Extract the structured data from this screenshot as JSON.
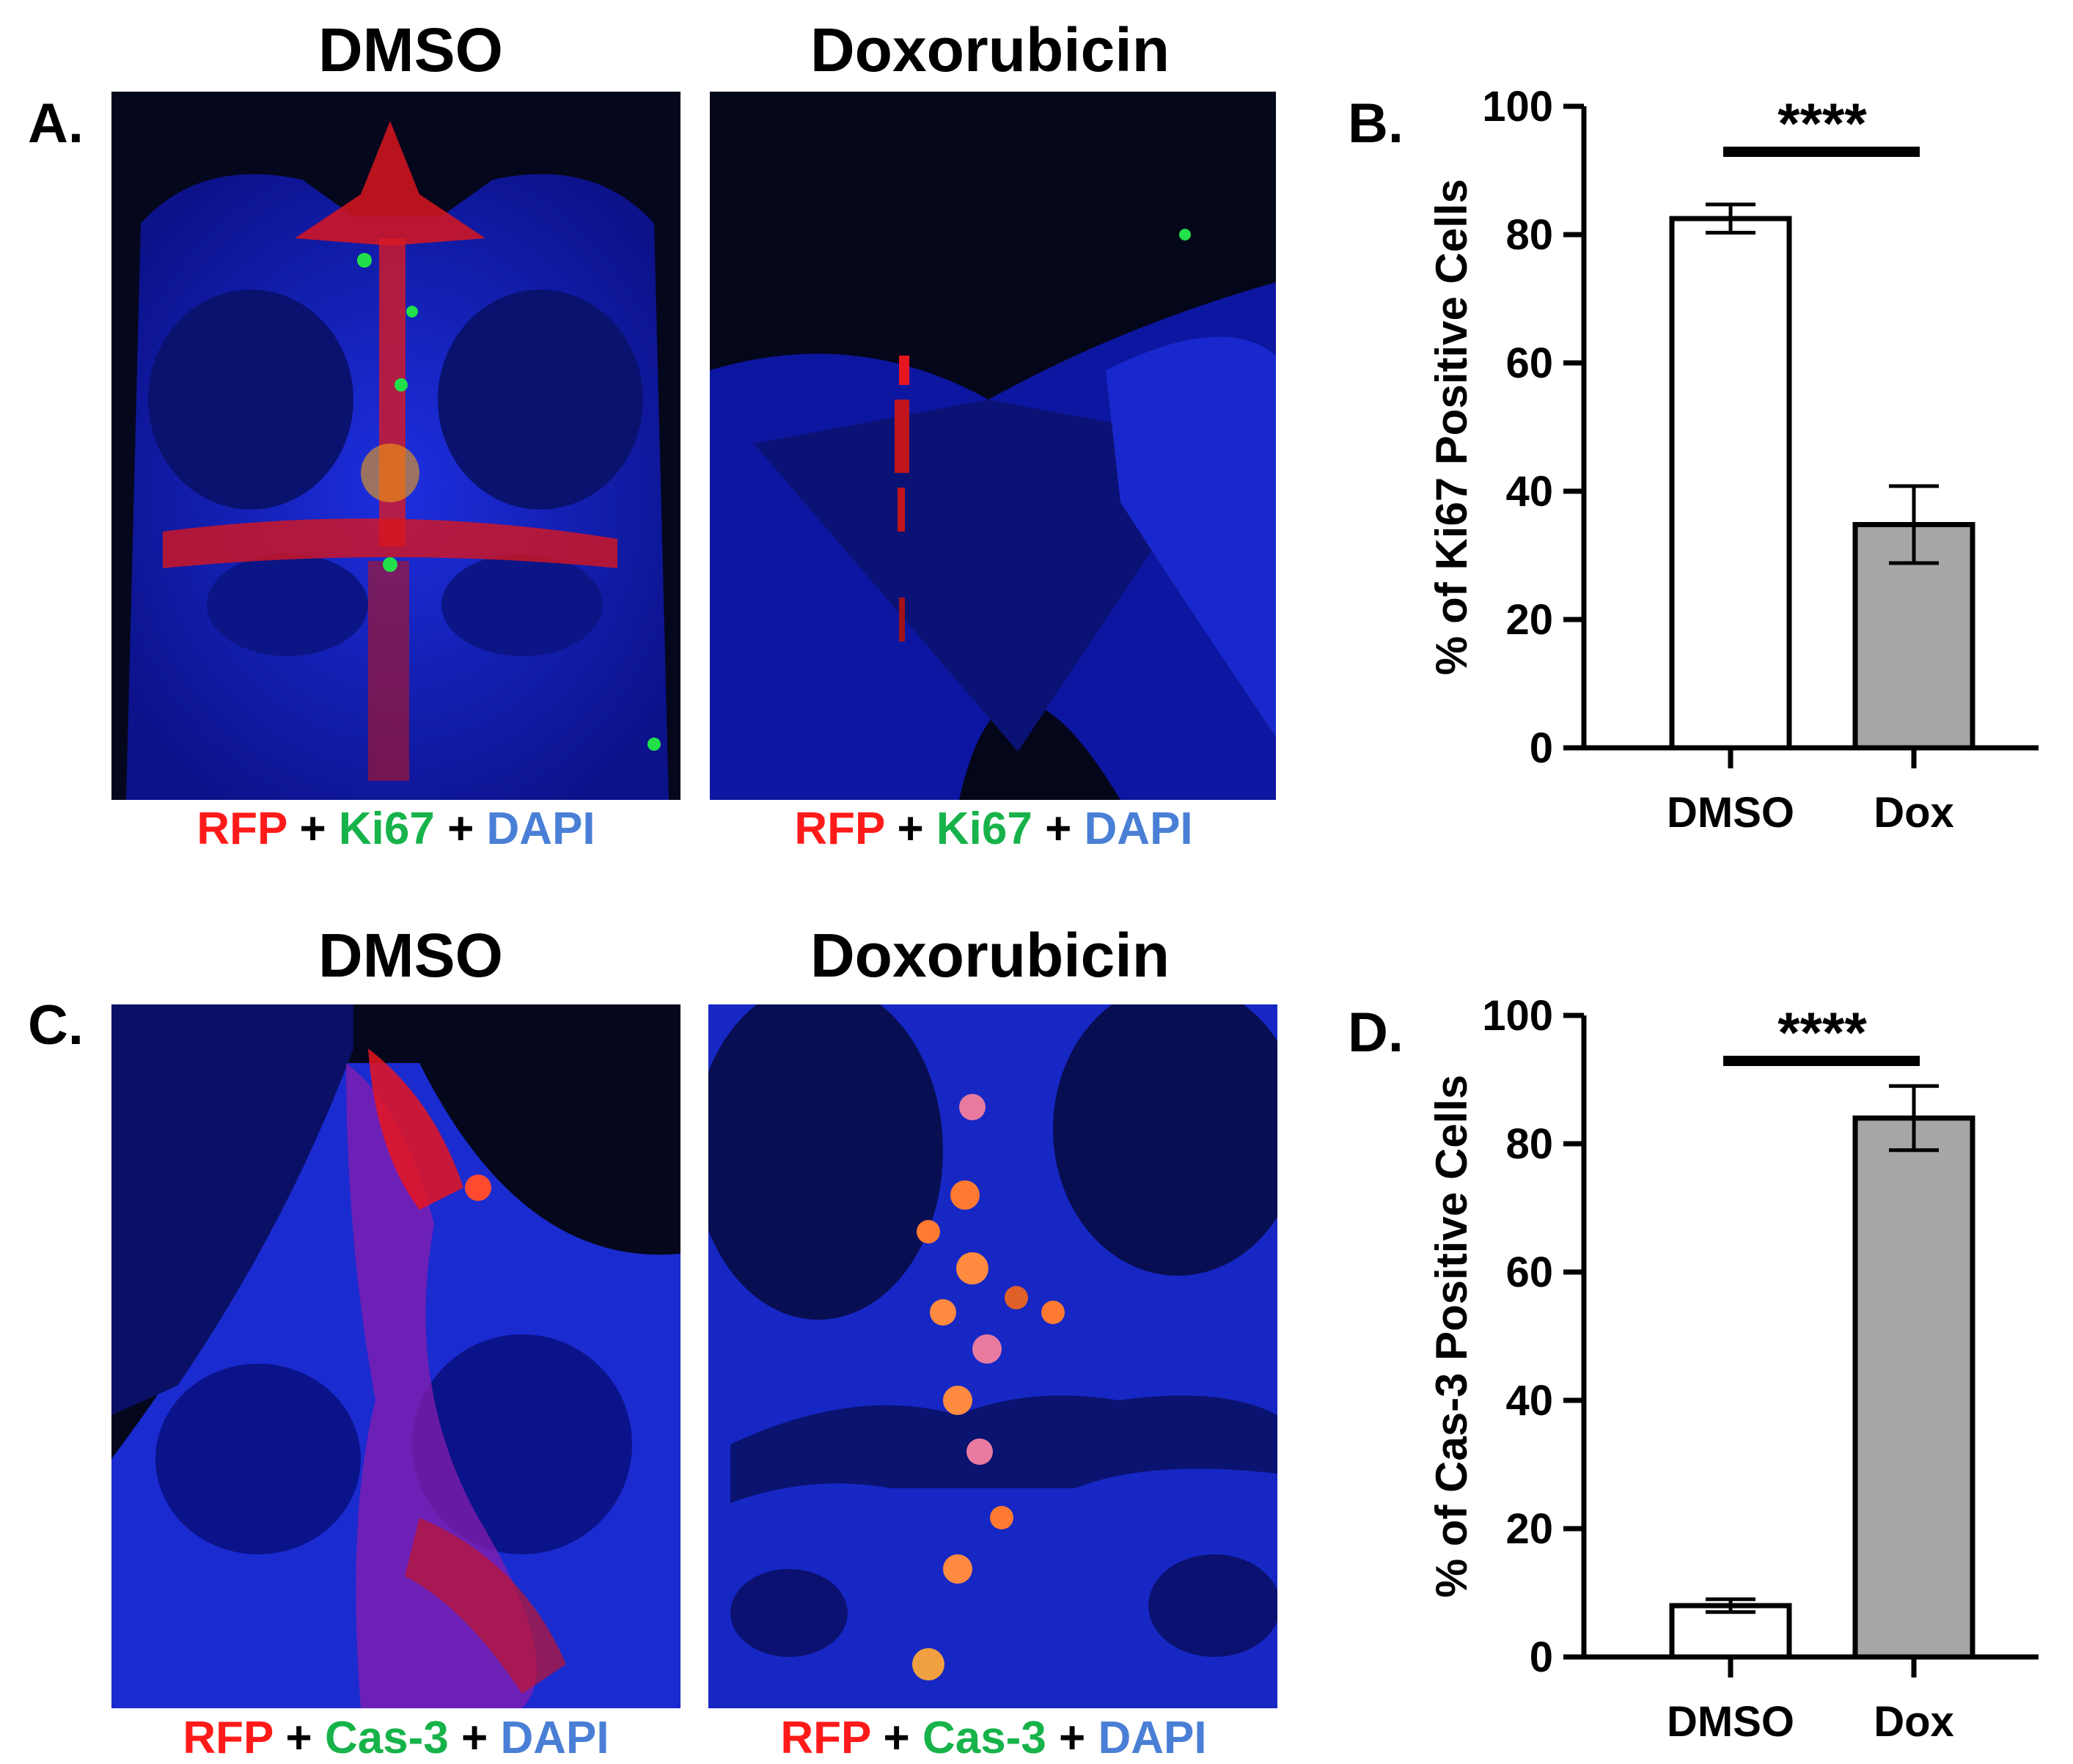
{
  "panels": {
    "A": {
      "letter": "A.",
      "left_title": "DMSO",
      "right_title": "Doxorubicin",
      "caption_left": [
        {
          "text": "RFP",
          "color": "#ff1a1a"
        },
        {
          "text": " + ",
          "color": "#000000"
        },
        {
          "text": "Ki67",
          "color": "#17b34a"
        },
        {
          "text": " + ",
          "color": "#000000"
        },
        {
          "text": "DAPI",
          "color": "#4a7fd6"
        }
      ],
      "caption_right": [
        {
          "text": "RFP",
          "color": "#ff1a1a"
        },
        {
          "text": " + ",
          "color": "#000000"
        },
        {
          "text": "Ki67",
          "color": "#17b34a"
        },
        {
          "text": " + ",
          "color": "#000000"
        },
        {
          "text": "DAPI",
          "color": "#4a7fd6"
        }
      ]
    },
    "C": {
      "letter": "C.",
      "left_title": "DMSO",
      "right_title": "Doxorubicin",
      "caption_left": [
        {
          "text": "RFP",
          "color": "#ff1a1a"
        },
        {
          "text": " + ",
          "color": "#000000"
        },
        {
          "text": "Cas-3",
          "color": "#17b34a"
        },
        {
          "text": " + ",
          "color": "#000000"
        },
        {
          "text": "DAPI",
          "color": "#4a7fd6"
        }
      ],
      "caption_right": [
        {
          "text": "RFP",
          "color": "#ff1a1a"
        },
        {
          "text": " + ",
          "color": "#000000"
        },
        {
          "text": "Cas-3",
          "color": "#17b34a"
        },
        {
          "text": " + ",
          "color": "#000000"
        },
        {
          "text": "DAPI",
          "color": "#4a7fd6"
        }
      ]
    },
    "B": {
      "letter": "B."
    },
    "D": {
      "letter": "D."
    }
  },
  "chart_data": [
    {
      "id": "B",
      "type": "bar",
      "title": "",
      "xlabel": "",
      "ylabel": "% of Ki67 Positive Cells",
      "categories": [
        "DMSO",
        "Dox"
      ],
      "values": [
        82.5,
        34.8
      ],
      "errors": [
        2.2,
        6.0
      ],
      "bar_colors": [
        "#ffffff",
        "#a6a6a6"
      ],
      "ylim": [
        0,
        100
      ],
      "yticks": [
        0,
        20,
        40,
        60,
        80,
        100
      ],
      "significance": "****"
    },
    {
      "id": "D",
      "type": "bar",
      "title": "",
      "xlabel": "",
      "ylabel": "% of Cas-3 Positive Cells",
      "categories": [
        "DMSO",
        "Dox"
      ],
      "values": [
        8.0,
        84.0
      ],
      "errors": [
        1.0,
        5.0
      ],
      "bar_colors": [
        "#ffffff",
        "#a6a6a6"
      ],
      "ylim": [
        0,
        100
      ],
      "yticks": [
        0,
        20,
        40,
        60,
        80,
        100
      ],
      "significance": "****"
    }
  ]
}
